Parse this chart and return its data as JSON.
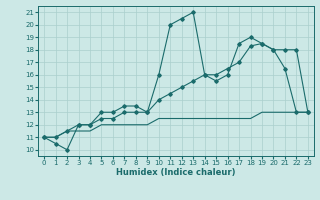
{
  "xlabel": "Humidex (Indice chaleur)",
  "xlim": [
    -0.5,
    23.5
  ],
  "ylim": [
    9.5,
    21.5
  ],
  "xticks": [
    0,
    1,
    2,
    3,
    4,
    5,
    6,
    7,
    8,
    9,
    10,
    11,
    12,
    13,
    14,
    15,
    16,
    17,
    18,
    19,
    20,
    21,
    22,
    23
  ],
  "yticks": [
    10,
    11,
    12,
    13,
    14,
    15,
    16,
    17,
    18,
    19,
    20,
    21
  ],
  "bg_color": "#cce8e6",
  "line_color": "#1a6b6b",
  "grid_color": "#aacfcd",
  "line1_x": [
    0,
    1,
    2,
    3,
    4,
    5,
    6,
    7,
    8,
    9,
    10,
    11,
    12,
    13,
    14,
    15,
    16,
    17,
    18,
    19,
    20,
    21,
    22,
    23
  ],
  "line1_y": [
    11,
    10.5,
    10,
    12,
    12,
    13,
    13,
    13.5,
    13.5,
    13,
    16,
    20,
    20.5,
    21,
    16,
    15.5,
    16,
    18.5,
    19,
    18.5,
    18,
    16.5,
    13,
    13
  ],
  "line2_x": [
    0,
    1,
    2,
    3,
    4,
    5,
    6,
    7,
    8,
    9,
    10,
    11,
    12,
    13,
    14,
    15,
    16,
    17,
    18,
    19,
    20,
    21,
    22,
    23
  ],
  "line2_y": [
    11,
    11,
    11.5,
    11.5,
    11.5,
    12,
    12,
    12,
    12,
    12,
    12.5,
    12.5,
    12.5,
    12.5,
    12.5,
    12.5,
    12.5,
    12.5,
    12.5,
    13,
    13,
    13,
    13,
    13
  ],
  "line3_x": [
    0,
    1,
    2,
    3,
    4,
    5,
    6,
    7,
    8,
    9,
    10,
    11,
    12,
    13,
    14,
    15,
    16,
    17,
    18,
    19,
    20,
    21,
    22,
    23
  ],
  "line3_y": [
    11,
    11,
    11.5,
    12,
    12,
    12.5,
    12.5,
    13,
    13,
    13,
    14,
    14.5,
    15,
    15.5,
    16,
    16,
    16.5,
    17,
    18.3,
    18.5,
    18,
    18,
    18,
    13
  ]
}
